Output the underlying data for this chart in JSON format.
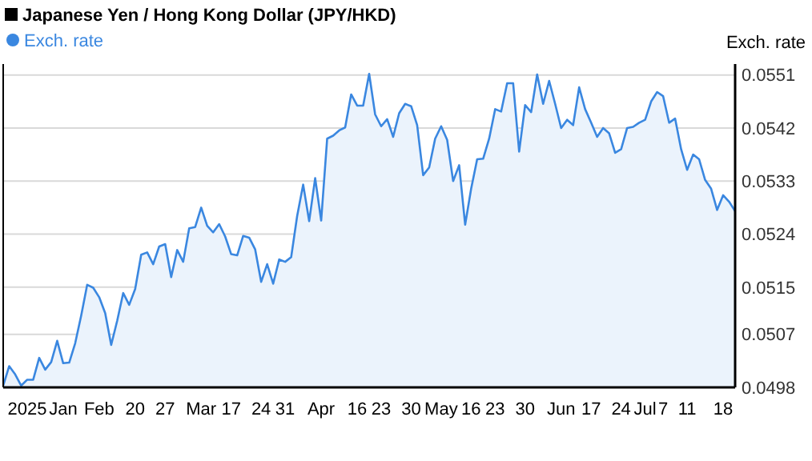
{
  "chart_data": {
    "type": "area",
    "title": "Japanese Yen / Hong Kong Dollar (JPY/HKD)",
    "ylabel": "Exch. rate",
    "legend": "top left",
    "grid": "y",
    "marker": "none",
    "categories": [
      null,
      null,
      null,
      null,
      "2025",
      null,
      null,
      null,
      null,
      null,
      "Jan",
      null,
      null,
      null,
      null,
      null,
      "Feb",
      null,
      null,
      null,
      null,
      null,
      "20",
      null,
      null,
      null,
      null,
      "27",
      null,
      null,
      null,
      null,
      null,
      "Mar",
      null,
      null,
      null,
      null,
      "17",
      null,
      null,
      null,
      null,
      "24",
      null,
      null,
      null,
      "31",
      null,
      null,
      null,
      null,
      null,
      "Apr",
      null,
      null,
      null,
      null,
      null,
      "16",
      null,
      null,
      null,
      "23",
      null,
      null,
      null,
      null,
      "30",
      null,
      null,
      null,
      null,
      "May",
      null,
      null,
      null,
      null,
      "16",
      null,
      null,
      null,
      "23",
      null,
      null,
      null,
      null,
      "30",
      null,
      null,
      null,
      null,
      null,
      "Jun",
      null,
      null,
      null,
      null,
      "17",
      null,
      null,
      null,
      null,
      "24",
      null,
      null,
      null,
      "Jul",
      null,
      null,
      "7",
      null,
      null,
      null,
      "11",
      null,
      null,
      null,
      null,
      null,
      "18",
      null,
      null
    ],
    "ylim": [
      0.0498,
      0.05515
    ],
    "yticks": [
      0.0498,
      0.0507,
      0.0515,
      0.0524,
      0.0533,
      0.0542,
      0.0551
    ],
    "series": [
      {
        "name": "Exch. rate",
        "color": "#3a87e0",
        "values": [
          0.04983,
          0.05016,
          0.05002,
          0.04983,
          0.04993,
          0.04993,
          0.0503,
          0.0501,
          0.05023,
          0.05059,
          0.05021,
          0.05022,
          0.05055,
          0.05102,
          0.05154,
          0.05149,
          0.05133,
          0.05106,
          0.05052,
          0.05093,
          0.0514,
          0.0512,
          0.05147,
          0.05205,
          0.05209,
          0.05189,
          0.05219,
          0.05223,
          0.05167,
          0.05213,
          0.05193,
          0.0525,
          0.05252,
          0.05285,
          0.05254,
          0.05243,
          0.05257,
          0.05236,
          0.05206,
          0.05204,
          0.05237,
          0.05234,
          0.05214,
          0.05159,
          0.05189,
          0.05156,
          0.05197,
          0.05193,
          0.05201,
          0.05271,
          0.05324,
          0.05262,
          0.05335,
          0.05263,
          0.05402,
          0.05407,
          0.05416,
          0.05421,
          0.05477,
          0.05458,
          0.05458,
          0.05512,
          0.05443,
          0.05423,
          0.05435,
          0.05405,
          0.05445,
          0.05461,
          0.05457,
          0.05425,
          0.0534,
          0.05353,
          0.05402,
          0.05423,
          0.054,
          0.0533,
          0.05357,
          0.05256,
          0.05317,
          0.05367,
          0.05368,
          0.05402,
          0.05452,
          0.05448,
          0.05496,
          0.05496,
          0.0538,
          0.05459,
          0.05447,
          0.05511,
          0.05461,
          0.055,
          0.05461,
          0.0542,
          0.05434,
          0.05425,
          0.05489,
          0.05452,
          0.05429,
          0.05405,
          0.0542,
          0.05411,
          0.05378,
          0.05384,
          0.0542,
          0.05422,
          0.05429,
          0.05434,
          0.05465,
          0.05481,
          0.05474,
          0.05429,
          0.05436,
          0.05384,
          0.05349,
          0.05375,
          0.05367,
          0.05332,
          0.05317,
          0.05281,
          0.05306,
          0.05295,
          0.05279
        ]
      }
    ]
  }
}
